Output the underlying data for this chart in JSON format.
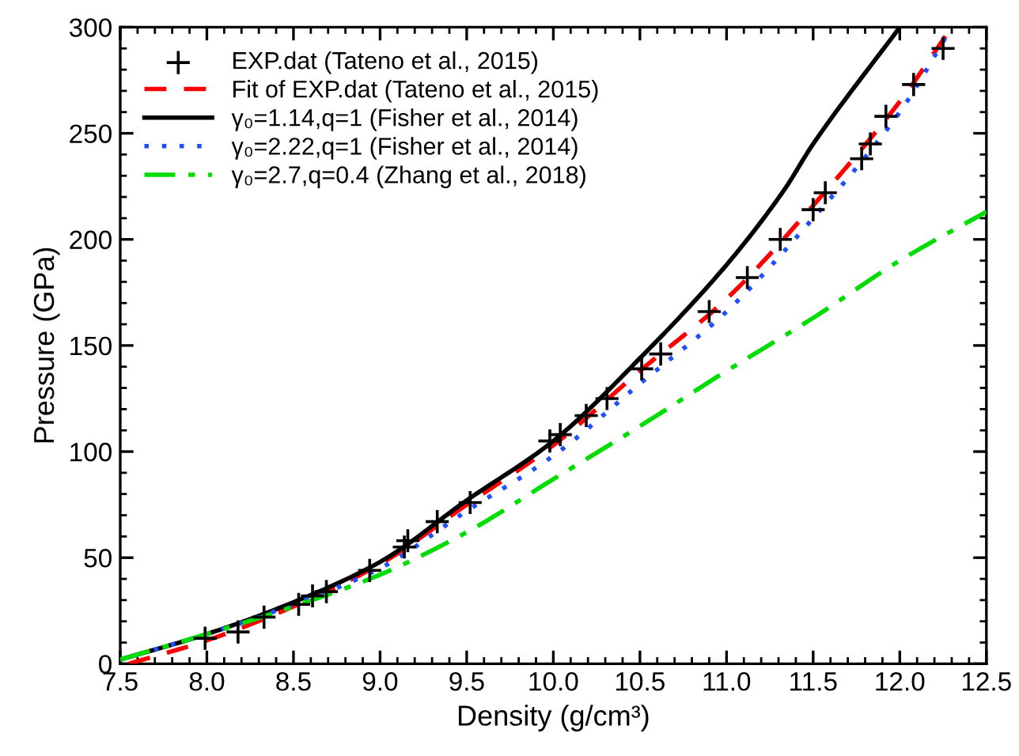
{
  "chart_data": {
    "type": "line",
    "xlabel": "Density (g/cm³)",
    "ylabel": "Pressure (GPa)",
    "xlim": [
      7.5,
      12.5
    ],
    "ylim": [
      0,
      300
    ],
    "xticks": [
      {
        "value": 7.5,
        "label": "7.5"
      },
      {
        "value": 8.0,
        "label": "8.0"
      },
      {
        "value": 8.5,
        "label": "8.5"
      },
      {
        "value": 9.0,
        "label": "9.0"
      },
      {
        "value": 9.5,
        "label": "9.5"
      },
      {
        "value": 10.0,
        "label": "10.0"
      },
      {
        "value": 10.5,
        "label": "10.5"
      },
      {
        "value": 11.0,
        "label": "11.0"
      },
      {
        "value": 11.5,
        "label": "11.5"
      },
      {
        "value": 12.0,
        "label": "12.0"
      },
      {
        "value": 12.5,
        "label": "12.5"
      }
    ],
    "yticks": [
      0,
      50,
      100,
      150,
      200,
      250,
      300
    ],
    "grid": false,
    "legend": "top left",
    "series": [
      {
        "name": "EXP.dat (Tateno et al., 2015)",
        "type": "scatter",
        "marker": "cross",
        "color": "#000000",
        "x": [
          7.99,
          8.18,
          8.33,
          8.53,
          8.61,
          8.69,
          8.94,
          9.14,
          9.16,
          9.33,
          9.52,
          9.98,
          10.04,
          10.19,
          10.31,
          10.51,
          10.62,
          10.9,
          11.12,
          11.31,
          11.5,
          11.57,
          11.78,
          11.83,
          11.92,
          12.08,
          12.25
        ],
        "values": [
          12,
          15,
          22,
          28,
          32,
          34,
          44,
          55,
          58,
          67,
          76,
          105,
          108,
          117,
          125,
          139,
          146,
          166,
          182,
          200,
          214,
          222,
          238,
          245,
          258,
          273,
          290
        ]
      },
      {
        "name": "Fit of EXP.dat (Tateno et al., 2015)",
        "line_style": "dashed",
        "color": "#ff0000",
        "x": [
          7.55,
          8.0,
          8.5,
          9.0,
          9.5,
          10.0,
          10.5,
          11.0,
          11.5,
          12.0,
          12.3
        ],
        "values": [
          0,
          11,
          27,
          47,
          75,
          103,
          138,
          172,
          216,
          265,
          300
        ]
      },
      {
        "name": "γ₀=1.14,q=1 (Fisher et al., 2014)",
        "line_style": "solid",
        "color": "#000000",
        "x": [
          7.5,
          8.0,
          8.5,
          9.0,
          9.5,
          10.0,
          10.5,
          11.0,
          11.33,
          11.5,
          12.0
        ],
        "values": [
          2,
          14,
          29,
          48,
          77,
          105,
          144,
          188,
          223,
          245,
          300
        ]
      },
      {
        "name": "γ₀=2.22,q=1 (Fisher et al., 2014)",
        "line_style": "dotted",
        "color": "#1f4fff",
        "x": [
          7.5,
          8.0,
          8.5,
          9.0,
          9.5,
          10.0,
          10.5,
          11.0,
          11.5,
          12.0,
          12.3
        ],
        "values": [
          2,
          14,
          28,
          45,
          72,
          98,
          132,
          166,
          210,
          260,
          300
        ]
      },
      {
        "name": "γ₀=2.7,q=0.4 (Zhang et al., 2018)",
        "line_style": "dashdot",
        "color": "#00dd00",
        "x": [
          7.5,
          8.0,
          8.5,
          9.0,
          9.5,
          10.0,
          10.5,
          11.0,
          11.5,
          12.0,
          12.5
        ],
        "values": [
          2,
          14,
          27,
          42,
          62,
          87,
          112,
          138,
          163,
          190,
          213
        ]
      }
    ]
  }
}
